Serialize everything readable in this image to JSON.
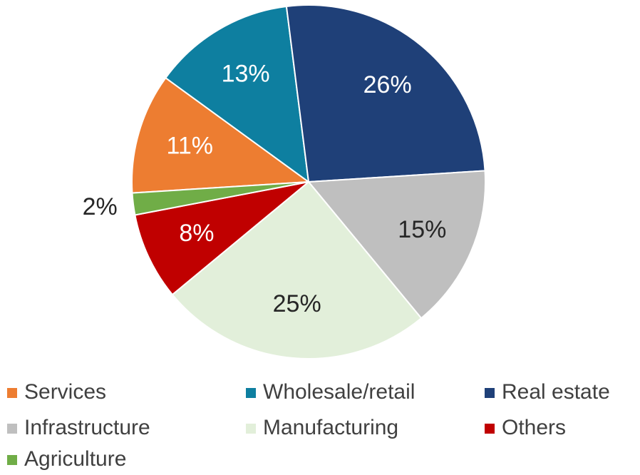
{
  "chart_data": {
    "type": "pie",
    "categories": [
      "Services",
      "Wholesale/retail",
      "Real estate",
      "Infrastructure",
      "Manufacturing",
      "Others",
      "Agriculture"
    ],
    "values": [
      11,
      13,
      26,
      15,
      25,
      8,
      2
    ],
    "value_labels": [
      "11%",
      "13%",
      "26%",
      "15%",
      "25%",
      "8%",
      "2%"
    ],
    "colors": [
      "#ED7D31",
      "#0E7FA0",
      "#1F4078",
      "#BFBFBF",
      "#E2EFDA",
      "#C00000",
      "#70AD47"
    ],
    "legend": "bottom"
  }
}
